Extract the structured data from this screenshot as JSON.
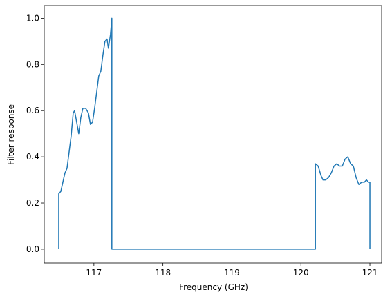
{
  "chart_data": {
    "type": "line",
    "xlabel": "Frequency (GHz)",
    "ylabel": "Filter response",
    "x": [
      116.49,
      116.49,
      116.52,
      116.55,
      116.58,
      116.61,
      116.64,
      116.67,
      116.7,
      116.72,
      116.75,
      116.78,
      116.81,
      116.84,
      116.88,
      116.92,
      116.95,
      116.98,
      117.01,
      117.04,
      117.07,
      117.1,
      117.13,
      117.16,
      117.19,
      117.21,
      117.24,
      117.26,
      117.26,
      120.21,
      120.21,
      120.25,
      120.29,
      120.32,
      120.36,
      120.4,
      120.44,
      120.48,
      120.52,
      120.56,
      120.6,
      120.64,
      120.68,
      120.72,
      120.76,
      120.8,
      120.84,
      120.88,
      120.92,
      120.95,
      120.98,
      121.0,
      121.0
    ],
    "series": [
      {
        "color": "#1f77b4",
        "values": [
          0,
          0.24,
          0.25,
          0.29,
          0.33,
          0.35,
          0.42,
          0.49,
          0.59,
          0.6,
          0.55,
          0.5,
          0.57,
          0.61,
          0.61,
          0.59,
          0.54,
          0.55,
          0.61,
          0.68,
          0.75,
          0.77,
          0.84,
          0.9,
          0.91,
          0.87,
          0.93,
          1.0,
          0,
          0,
          0.37,
          0.36,
          0.32,
          0.3,
          0.3,
          0.31,
          0.33,
          0.36,
          0.37,
          0.36,
          0.36,
          0.39,
          0.4,
          0.37,
          0.36,
          0.31,
          0.28,
          0.29,
          0.29,
          0.3,
          0.29,
          0.29,
          0
        ]
      }
    ],
    "xlim": [
      116.28,
      121.17
    ],
    "ylim": [
      -0.06,
      1.055
    ],
    "xticks": [
      117,
      118,
      119,
      120,
      121
    ],
    "yticks": [
      {
        "value": 0,
        "label": "0.0"
      },
      0.2,
      0.4,
      0.6,
      0.8,
      {
        "value": 1,
        "label": "1.0"
      }
    ]
  }
}
